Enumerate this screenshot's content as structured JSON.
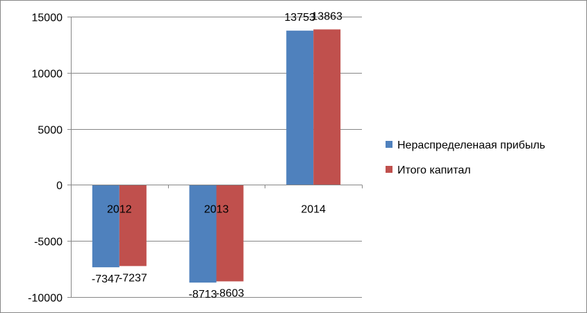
{
  "chart_data": {
    "type": "bar",
    "categories": [
      "2012",
      "2013",
      "2014"
    ],
    "series": [
      {
        "name": "Нераспределенаая прибыль",
        "color": "#4F81BD",
        "values": [
          -7347,
          -8713,
          13753
        ]
      },
      {
        "name": "Итого капитал",
        "color": "#C0504D",
        "values": [
          -7237,
          -8603,
          13863
        ]
      }
    ],
    "ylim": [
      -10000,
      15000
    ],
    "yticks": [
      -10000,
      -5000,
      0,
      5000,
      10000,
      15000
    ],
    "ytick_labels": [
      "-10000",
      "-5000",
      "0",
      "5000",
      "10000",
      "15000"
    ],
    "grid": true,
    "legend_position": "right",
    "data_labels": true
  }
}
